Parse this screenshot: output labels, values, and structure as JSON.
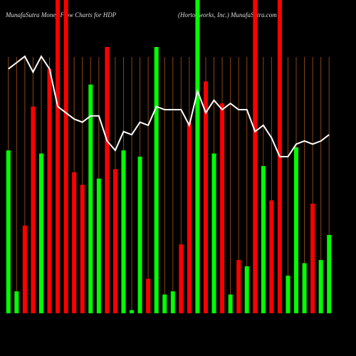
{
  "chart_data": {
    "type": "bar-line",
    "title": "MunafaSutra  Money Flow  Charts for HDP",
    "subtitle": "(Hortonworks, Inc.) MunafaSutra.com",
    "ylim": [
      0,
      100
    ],
    "grid_color": "#8b4513",
    "bars": {
      "values": [
        52,
        7,
        28,
        66,
        51,
        78,
        100,
        100,
        45,
        41,
        73,
        43,
        85,
        46,
        52,
        1,
        50,
        11,
        85,
        6,
        7,
        22,
        61,
        100,
        74,
        51,
        67,
        6,
        17,
        15,
        100,
        47,
        36,
        100,
        12,
        53,
        16,
        35,
        17,
        25
      ],
      "colors": [
        "#00ff00",
        "#00ff00",
        "#ff0000",
        "#ff0000",
        "#00ff00",
        "#ff0000",
        "#ff0000",
        "#ff0000",
        "#ff0000",
        "#ff0000",
        "#00ff00",
        "#00ff00",
        "#ff0000",
        "#ff0000",
        "#00ff00",
        "#00ff00",
        "#00ff00",
        "#ff0000",
        "#00ff00",
        "#00ff00",
        "#00ff00",
        "#ff0000",
        "#ff0000",
        "#00ff00",
        "#ff0000",
        "#00ff00",
        "#ff0000",
        "#00ff00",
        "#ff0000",
        "#00ff00",
        "#ff0000",
        "#00ff00",
        "#ff0000",
        "#ff0000",
        "#00ff00",
        "#00ff00",
        "#00ff00",
        "#ff0000",
        "#00ff00",
        "#00ff00"
      ]
    },
    "line": {
      "color": "#ffffff",
      "values": [
        78,
        80,
        82,
        77,
        82,
        78,
        66,
        64,
        62,
        61,
        63,
        63,
        55,
        52,
        58,
        57,
        61,
        60,
        66,
        65,
        65,
        65,
        60,
        71,
        64,
        68,
        65,
        67,
        65,
        65,
        58,
        60,
        56,
        50,
        50,
        54,
        55,
        54,
        55,
        57
      ]
    }
  }
}
